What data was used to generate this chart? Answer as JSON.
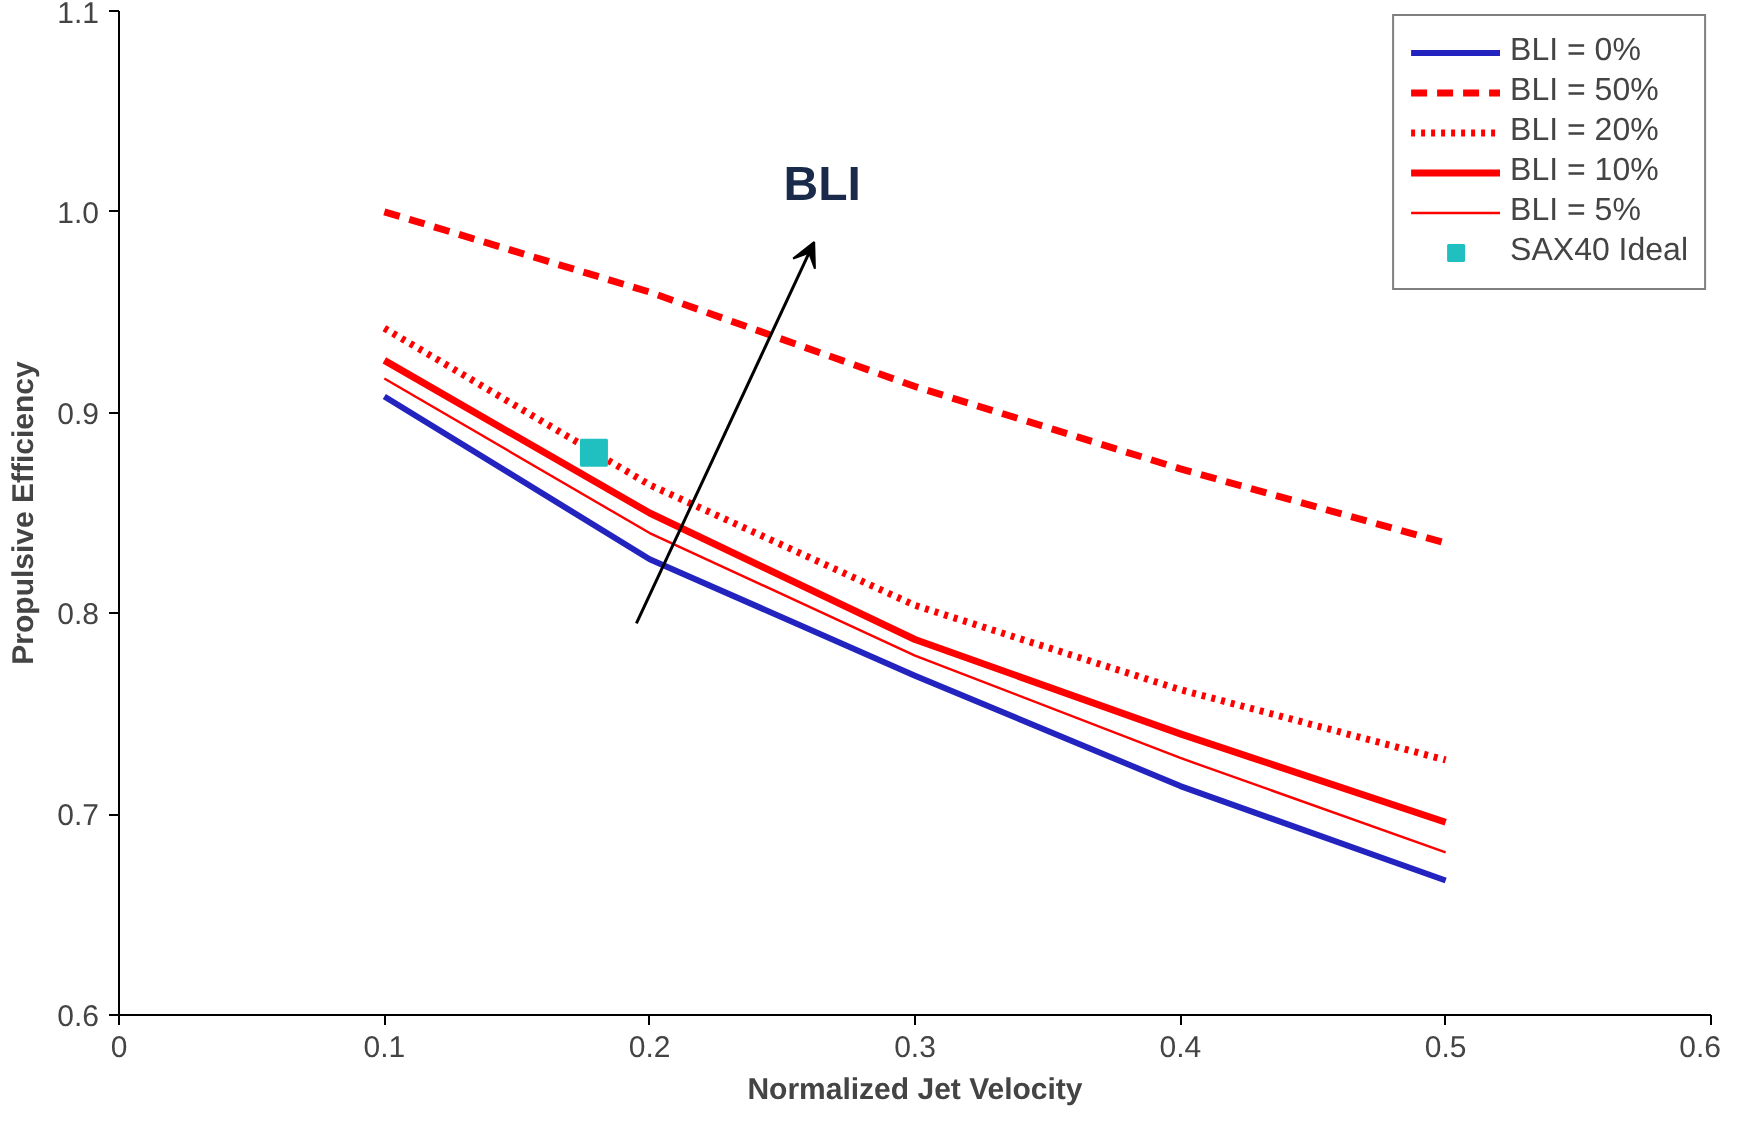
{
  "chart_data": {
    "type": "line",
    "xlabel": "Normalized Jet Velocity",
    "ylabel": "Propulsive Efficiency",
    "xlim": [
      0,
      0.6
    ],
    "xticks": [
      0,
      0.1,
      0.2,
      0.3,
      0.4,
      0.5,
      0.6
    ],
    "ylim": [
      0.6,
      1.1
    ],
    "yticks": [
      {
        "value": 0.6,
        "label": "0.6"
      },
      {
        "value": 0.7,
        "label": "0.7"
      },
      {
        "value": 0.8,
        "label": "0.8"
      },
      {
        "value": 0.9,
        "label": "0.9"
      },
      {
        "value": 1.0,
        "label": "1.0"
      },
      {
        "value": 1.1,
        "label": "1.1"
      }
    ],
    "grid": false,
    "legend": "top right",
    "annotations": [
      "BLI"
    ],
    "series": [
      {
        "name": "BLI = 0%",
        "color": "#2323c0",
        "line_style": "solid",
        "x": [
          0.1,
          0.2,
          0.3,
          0.4,
          0.5
        ],
        "values": [
          0.908,
          0.827,
          0.769,
          0.714,
          0.667
        ]
      },
      {
        "name": "BLI = 50%",
        "color": "#ff0000",
        "line_style": "dashed",
        "x": [
          0.1,
          0.2,
          0.3,
          0.4,
          0.5
        ],
        "values": [
          1.0,
          0.96,
          0.913,
          0.872,
          0.835
        ]
      },
      {
        "name": "BLI = 20%",
        "color": "#ff0000",
        "line_style": "dotted",
        "x": [
          0.1,
          0.2,
          0.3,
          0.4,
          0.5
        ],
        "values": [
          0.942,
          0.864,
          0.804,
          0.762,
          0.727
        ]
      },
      {
        "name": "BLI = 10%",
        "color": "#ff0000",
        "line_style": "solid",
        "x": [
          0.1,
          0.2,
          0.3,
          0.4,
          0.5
        ],
        "values": [
          0.926,
          0.85,
          0.787,
          0.74,
          0.696
        ]
      },
      {
        "name": "BLI = 5%",
        "color": "#ff0000",
        "line_style": "solid",
        "x": [
          0.1,
          0.2,
          0.3,
          0.4,
          0.5
        ],
        "values": [
          0.917,
          0.84,
          0.779,
          0.728,
          0.681
        ]
      },
      {
        "name": "SAX40 Ideal",
        "type": "scatter",
        "marker": "square",
        "color": "#20c0c0",
        "x": [
          0.179
        ],
        "values": [
          0.88
        ]
      }
    ]
  }
}
